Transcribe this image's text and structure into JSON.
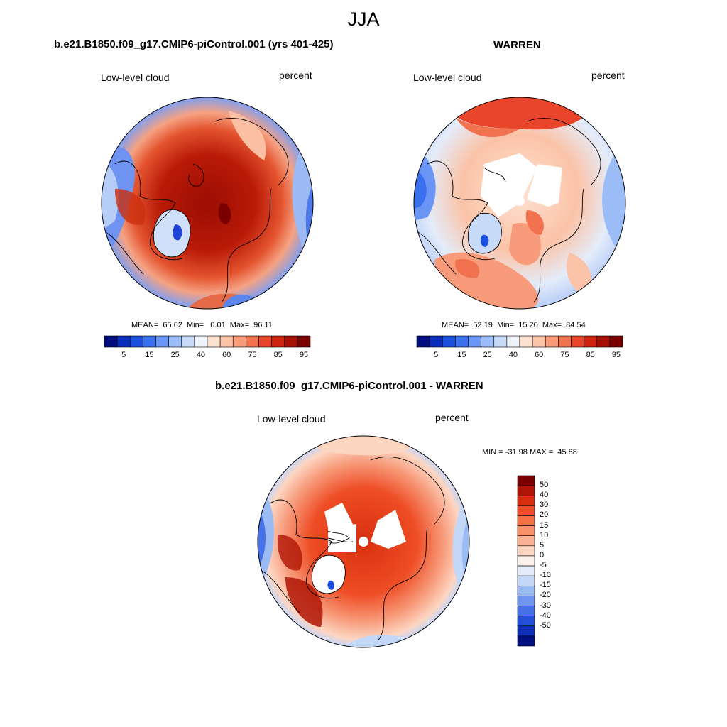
{
  "title": "JJA",
  "panels": [
    {
      "id": "model",
      "title": "b.e21.B1850.f09_g17.CMIP6-piControl.001 (yrs 401-425)",
      "left_label": "Low-level cloud",
      "right_label": "percent",
      "stats": "MEAN=  65.62  Min=   0.01  Max=  96.11"
    },
    {
      "id": "obs",
      "title": "WARREN",
      "left_label": "Low-level cloud",
      "right_label": "percent",
      "stats": "MEAN=  52.19  Min=  15.20  Max=  84.54"
    },
    {
      "id": "diff",
      "title": "b.e21.B1850.f09_g17.CMIP6-piControl.001 - WARREN",
      "left_label": "Low-level cloud",
      "right_label": "percent",
      "stats": "MIN = -31.98 MAX =  45.88"
    }
  ],
  "abs_colorbar": {
    "labels": [
      "5",
      "15",
      "25",
      "40",
      "60",
      "75",
      "85",
      "95"
    ],
    "colors": [
      "#000e7f",
      "#0a2cbd",
      "#1b4fe0",
      "#3a6ff0",
      "#6b95f5",
      "#9cbcf8",
      "#c7daf7",
      "#eef2fb",
      "#fde2d2",
      "#fbc3a7",
      "#f79b7b",
      "#f2714f",
      "#e8452a",
      "#cf2310",
      "#a70f05",
      "#7a0000"
    ]
  },
  "diff_colorbar": {
    "labels": [
      "50",
      "40",
      "30",
      "20",
      "15",
      "10",
      "5",
      "0",
      "-5",
      "-10",
      "-15",
      "-20",
      "-30",
      "-40",
      "-50"
    ],
    "colors": [
      "#7a0000",
      "#b01505",
      "#d8300f",
      "#ee4d25",
      "#f57044",
      "#f9916a",
      "#fbb193",
      "#fdd6c2",
      "#fdf2ea",
      "#e2ecfa",
      "#c3d7f8",
      "#9bbbf5",
      "#6f96f0",
      "#4671e8",
      "#2350db",
      "#0f2fb8",
      "#000e7f"
    ]
  }
}
